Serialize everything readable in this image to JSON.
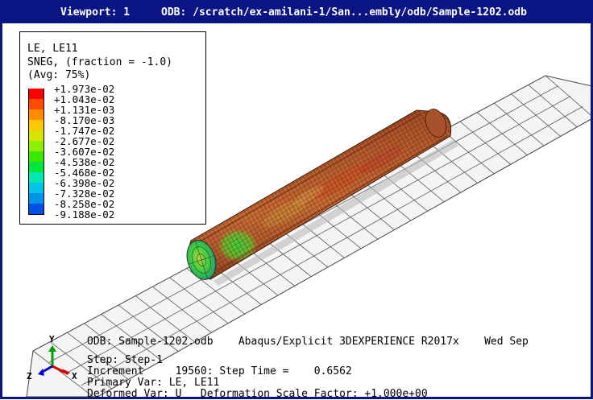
{
  "viewport": {
    "label": "Viewport: 1",
    "odb_path": "ODB: /scratch/ex-amilani-1/San...embly/odb/Sample-1202.odb"
  },
  "legend": {
    "title_line1": "LE, LE11",
    "title_line2": "SNEG, (fraction = -1.0)",
    "title_line3": "(Avg: 75%)",
    "entries": [
      {
        "value": "+1.973e-02",
        "color": "#ff0000"
      },
      {
        "value": "+1.043e-02",
        "color": "#ff4a00"
      },
      {
        "value": "+1.131e-03",
        "color": "#ff8c00"
      },
      {
        "value": "-8.170e-03",
        "color": "#ffc800"
      },
      {
        "value": "-1.747e-02",
        "color": "#d8e300"
      },
      {
        "value": "-2.677e-02",
        "color": "#8ef000"
      },
      {
        "value": "-3.607e-02",
        "color": "#3ce800"
      },
      {
        "value": "-4.538e-02",
        "color": "#00e43e"
      },
      {
        "value": "-5.468e-02",
        "color": "#00e8b0"
      },
      {
        "value": "-6.398e-02",
        "color": "#00c4e8"
      },
      {
        "value": "-7.328e-02",
        "color": "#0094e8"
      },
      {
        "value": "-8.258e-02",
        "color": "#0050e8"
      },
      {
        "value": "-9.188e-02",
        "color": "#0010f0"
      }
    ]
  },
  "info": {
    "odb_line": "ODB: Sample-1202.odb    Abaqus/Explicit 3DEXPERIENCE R2017x    Wed Sep",
    "step_line": "Step: Step-1",
    "increment_line": "Increment     19560: Step Time =    0.6562",
    "primary_line": "Primary Var: LE, LE11",
    "deformed_line": "Deformed Var: U   Deformation Scale Factor: +1.000e+00"
  },
  "triad": {
    "x": "X",
    "y": "Y",
    "z": "Z"
  },
  "colors": {
    "title_bar": "#0b1483",
    "frame": "#0b1483",
    "cylinder_body": "#b3532e",
    "cylinder_dark": "#8a3a20",
    "cylinder_light": "#d47a40",
    "plate_grid": "#555555"
  }
}
